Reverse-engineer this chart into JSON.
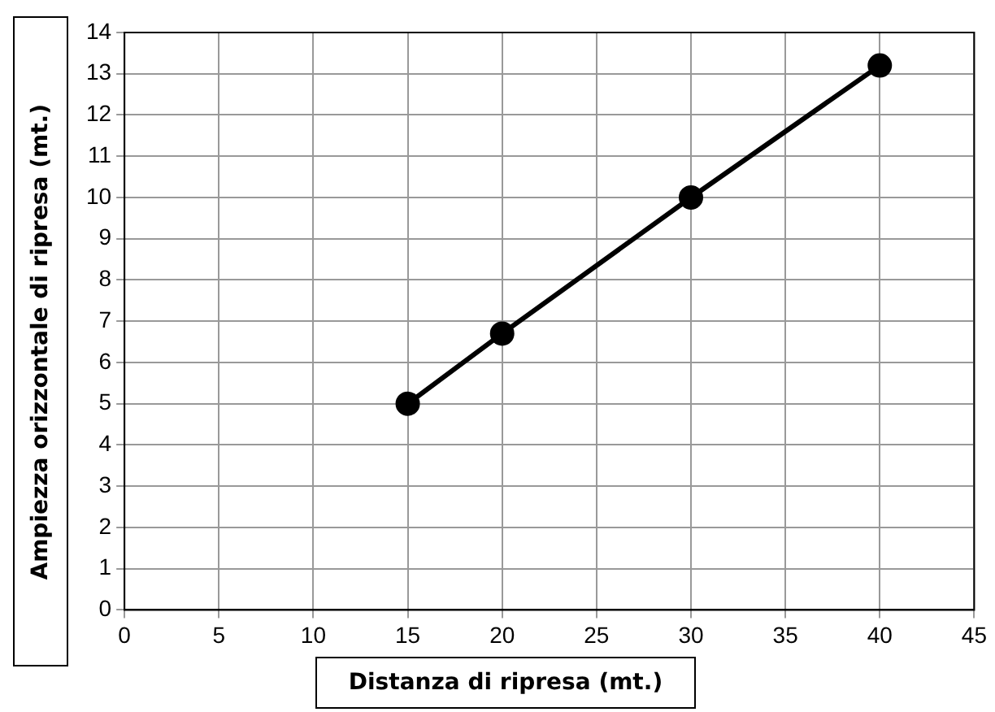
{
  "chart_data": {
    "type": "line",
    "xlabel": "Distanza di ripresa (mt.)",
    "ylabel": "Ampiezza orizzontale di ripresa (mt.)",
    "x": [
      15,
      20,
      30,
      40
    ],
    "series": [
      {
        "color": "#000000",
        "values": [
          5,
          6.7,
          10,
          13.2
        ]
      }
    ],
    "xlim": [
      0,
      45
    ],
    "xticks": [
      0,
      5,
      10,
      15,
      20,
      25,
      30,
      35,
      40,
      45
    ],
    "ylim": [
      0,
      14
    ],
    "yticks": [
      0,
      1,
      2,
      3,
      4,
      5,
      6,
      7,
      8,
      9,
      10,
      11,
      12,
      13,
      14
    ],
    "grid": true,
    "legend": false,
    "marker": "circle",
    "line_style": "solid"
  }
}
